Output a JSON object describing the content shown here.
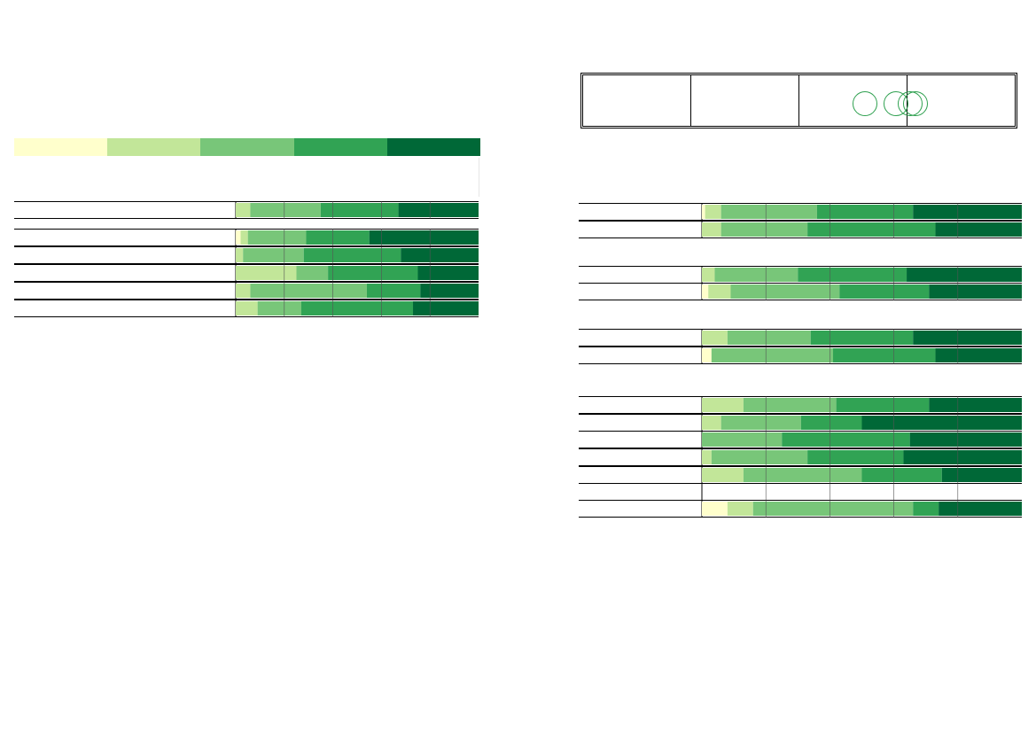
{
  "colors": {
    "levels": [
      "#ffffcc",
      "#c2e699",
      "#78c679",
      "#31a354",
      "#006837"
    ],
    "row_line": "#000000",
    "grid": "#555555",
    "ring": "#2ea04f"
  },
  "header": {
    "icon": "interlocking-rings-icon",
    "ring_count": 3
  },
  "chart_data": [
    {
      "type": "bar",
      "orientation": "horizontal",
      "stacked": true,
      "normalized": true,
      "xlim": [
        0,
        100
      ],
      "grid": true,
      "series_colors": [
        "#ffffcc",
        "#c2e699",
        "#78c679",
        "#31a354",
        "#006837"
      ],
      "rows": [
        {
          "empty": false,
          "values": [
            0,
            6,
            29,
            32,
            33
          ]
        },
        {
          "empty": false,
          "values": [
            2,
            3,
            24,
            26,
            45
          ]
        },
        {
          "empty": false,
          "values": [
            0,
            3,
            25,
            40,
            32
          ]
        },
        {
          "empty": false,
          "values": [
            0,
            25,
            13,
            37,
            25
          ]
        },
        {
          "empty": false,
          "values": [
            0,
            6,
            48,
            22,
            24
          ]
        },
        {
          "empty": false,
          "values": [
            0,
            9,
            18,
            46,
            27
          ]
        }
      ]
    },
    {
      "type": "bar",
      "orientation": "horizontal",
      "stacked": true,
      "normalized": true,
      "xlim": [
        0,
        100
      ],
      "grid": true,
      "series_colors": [
        "#ffffcc",
        "#c2e699",
        "#78c679",
        "#31a354",
        "#006837"
      ],
      "rows": [
        {
          "empty": false,
          "values": [
            1,
            5,
            30,
            30,
            34
          ]
        },
        {
          "empty": false,
          "values": [
            0,
            6,
            27,
            40,
            27
          ]
        },
        {
          "empty": false,
          "values": [
            0,
            4,
            26,
            34,
            36
          ]
        },
        {
          "empty": false,
          "values": [
            2,
            7,
            34,
            28,
            29
          ]
        },
        {
          "empty": false,
          "values": [
            0,
            8,
            26,
            32,
            34
          ]
        },
        {
          "empty": false,
          "values": [
            3,
            0,
            38,
            32,
            27
          ]
        },
        {
          "empty": false,
          "values": [
            0,
            13,
            29,
            29,
            29
          ]
        },
        {
          "empty": false,
          "values": [
            0,
            6,
            25,
            19,
            50
          ]
        },
        {
          "empty": false,
          "values": [
            0,
            0,
            25,
            40,
            35
          ]
        },
        {
          "empty": false,
          "values": [
            0,
            3,
            30,
            30,
            37
          ]
        },
        {
          "empty": false,
          "values": [
            0,
            13,
            37,
            25,
            25
          ]
        },
        {
          "empty": true,
          "values": [
            0,
            0,
            0,
            0,
            0
          ]
        },
        {
          "empty": false,
          "values": [
            8,
            8,
            50,
            8,
            26
          ]
        }
      ]
    }
  ]
}
